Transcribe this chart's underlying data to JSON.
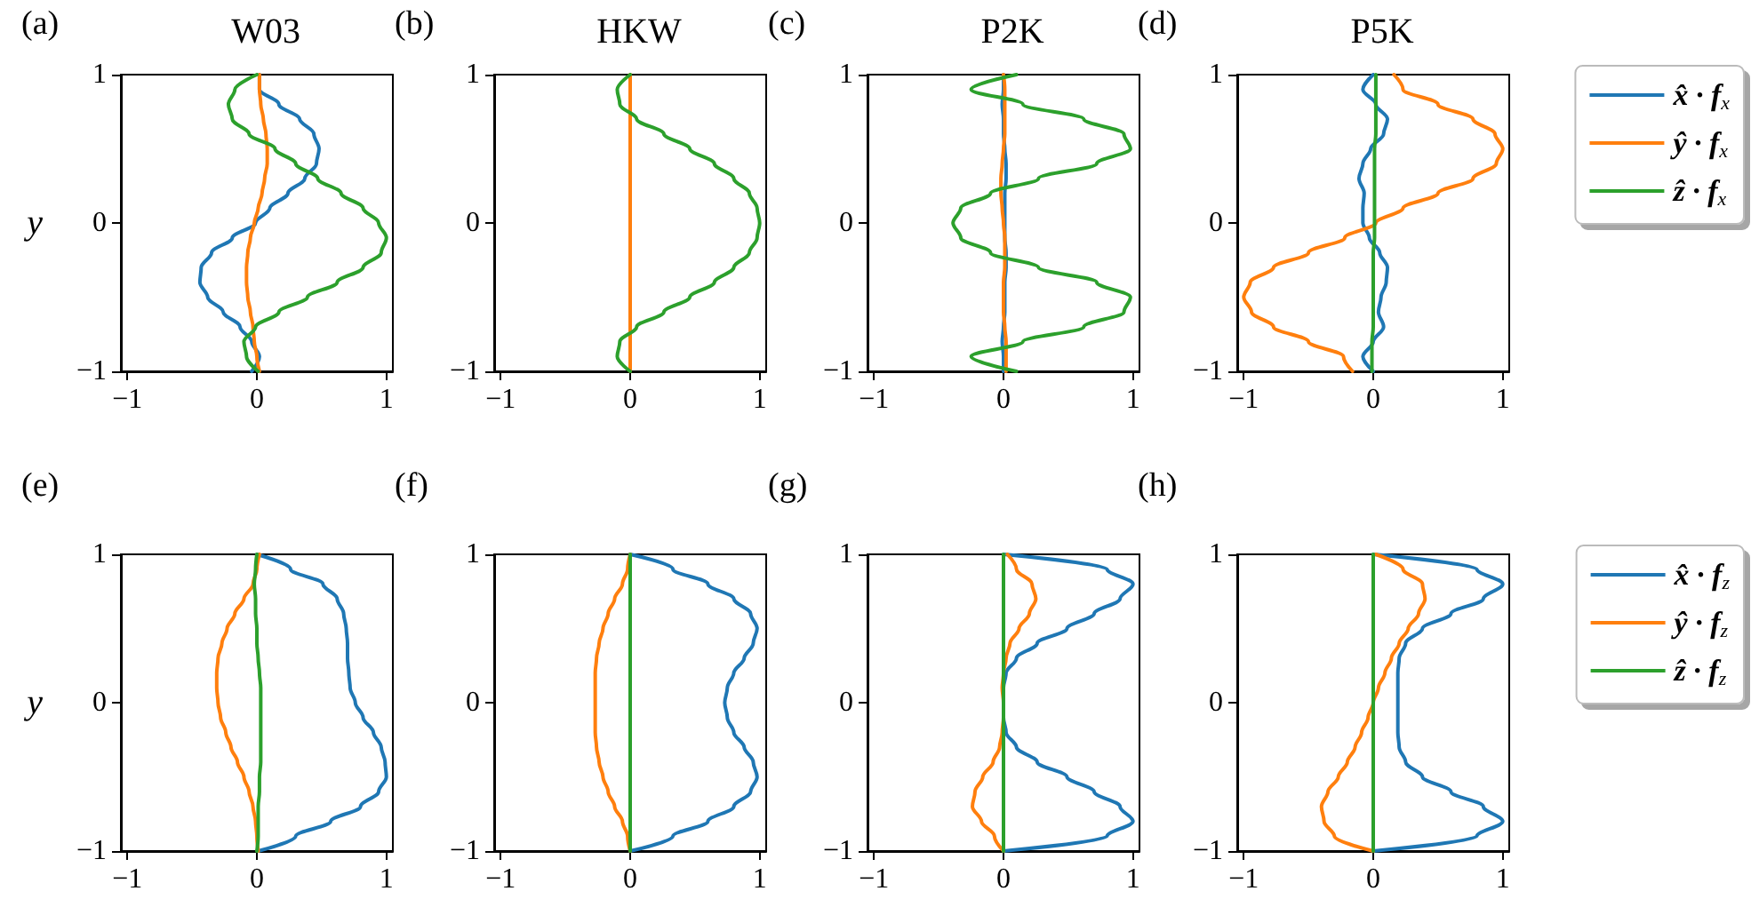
{
  "chart_data": [
    {
      "type": "line",
      "title": "W03",
      "annotations": [
        "(a)"
      ],
      "ylabel": "y",
      "xlim": [
        -1.05,
        1.05
      ],
      "xticks": [
        -1,
        0,
        1
      ],
      "ylim": [
        -1,
        1
      ],
      "yticks": [
        -1,
        0,
        1
      ],
      "marker": "none",
      "line_style": "solid",
      "series": [
        {
          "color": "#1f77b4",
          "x": [
            -0.04,
            0.02,
            -0.04,
            -0.13,
            -0.26,
            -0.38,
            -0.44,
            -0.43,
            -0.35,
            -0.19,
            -0.01,
            0.1,
            0.24,
            0.37,
            0.46,
            0.48,
            0.44,
            0.33,
            0.17,
            0.02,
            0.02
          ],
          "values": [
            -1,
            -0.9,
            -0.8,
            -0.7,
            -0.6,
            -0.5,
            -0.4,
            -0.3,
            -0.2,
            -0.1,
            0,
            0.1,
            0.2,
            0.3,
            0.4,
            0.5,
            0.6,
            0.7,
            0.8,
            0.9,
            1
          ]
        },
        {
          "color": "#ff7f0e",
          "x": [
            0.02,
            0,
            -0.02,
            -0.03,
            -0.05,
            -0.07,
            -0.08,
            -0.08,
            -0.07,
            -0.05,
            -0.02,
            0.01,
            0.04,
            0.06,
            0.08,
            0.08,
            0.07,
            0.05,
            0.03,
            0.02,
            0.02
          ],
          "values": [
            -1,
            -0.9,
            -0.8,
            -0.7,
            -0.6,
            -0.5,
            -0.4,
            -0.3,
            -0.2,
            -0.1,
            0,
            0.1,
            0.2,
            0.3,
            0.4,
            0.5,
            0.6,
            0.7,
            0.8,
            0.9,
            1
          ]
        },
        {
          "color": "#2ca02c",
          "x": [
            0.01,
            -0.08,
            -0.1,
            -0.01,
            0.17,
            0.39,
            0.62,
            0.82,
            0.96,
            1.0,
            0.94,
            0.82,
            0.65,
            0.47,
            0.3,
            0.14,
            -0.06,
            -0.19,
            -0.22,
            -0.17,
            0
          ],
          "values": [
            -1,
            -0.9,
            -0.8,
            -0.7,
            -0.6,
            -0.5,
            -0.4,
            -0.3,
            -0.2,
            -0.1,
            0,
            0.1,
            0.2,
            0.3,
            0.4,
            0.5,
            0.6,
            0.7,
            0.8,
            0.9,
            1
          ]
        }
      ]
    },
    {
      "type": "line",
      "title": "HKW",
      "annotations": [
        "(b)"
      ],
      "xlim": [
        -1.05,
        1.05
      ],
      "xticks": [
        -1,
        0,
        1
      ],
      "ylim": [
        -1,
        1
      ],
      "yticks": [
        -1,
        0,
        1
      ],
      "marker": "none",
      "line_style": "solid",
      "series": [
        {
          "color": "#ff7f0e",
          "x": [
            0,
            0,
            0,
            0,
            0,
            0,
            0,
            0,
            0,
            0,
            0,
            0,
            0,
            0,
            0,
            0,
            0,
            0,
            0,
            0,
            0
          ],
          "values": [
            -1,
            -0.9,
            -0.8,
            -0.7,
            -0.6,
            -0.5,
            -0.4,
            -0.3,
            -0.2,
            -0.1,
            0,
            0.1,
            0.2,
            0.3,
            0.4,
            0.5,
            0.6,
            0.7,
            0.8,
            0.9,
            1
          ]
        },
        {
          "color": "#2ca02c",
          "x": [
            0,
            -0.1,
            -0.08,
            0.05,
            0.26,
            0.46,
            0.65,
            0.8,
            0.92,
            0.98,
            1.0,
            0.98,
            0.92,
            0.8,
            0.65,
            0.46,
            0.26,
            0.05,
            -0.08,
            -0.1,
            0
          ],
          "values": [
            -1,
            -0.9,
            -0.8,
            -0.7,
            -0.6,
            -0.5,
            -0.4,
            -0.3,
            -0.2,
            -0.1,
            0,
            0.1,
            0.2,
            0.3,
            0.4,
            0.5,
            0.6,
            0.7,
            0.8,
            0.9,
            1
          ]
        }
      ]
    },
    {
      "type": "line",
      "title": "P2K",
      "annotations": [
        "(c)"
      ],
      "xlim": [
        -1.05,
        1.05
      ],
      "xticks": [
        -1,
        0,
        1
      ],
      "ylim": [
        -1,
        1
      ],
      "yticks": [
        -1,
        0,
        1
      ],
      "marker": "none",
      "line_style": "solid",
      "series": [
        {
          "color": "#1f77b4",
          "x": [
            0,
            0,
            -0.01,
            0,
            0.01,
            0.01,
            0.01,
            0.02,
            0.02,
            0.01,
            0.01,
            0.01,
            0.01,
            0.02,
            0.02,
            0.01,
            0,
            0,
            -0.01,
            0,
            0
          ],
          "values": [
            -1,
            -0.9,
            -0.8,
            -0.7,
            -0.6,
            -0.5,
            -0.4,
            -0.3,
            -0.2,
            -0.1,
            0,
            0.1,
            0.2,
            0.3,
            0.4,
            0.5,
            0.6,
            0.7,
            0.8,
            0.9,
            1
          ]
        },
        {
          "color": "#ff7f0e",
          "x": [
            0.02,
            0.02,
            0.02,
            0.01,
            0,
            0,
            0,
            0.01,
            0.01,
            0.01,
            0,
            -0.01,
            -0.02,
            -0.02,
            -0.01,
            0,
            0.01,
            0.01,
            0.01,
            0.01,
            0
          ],
          "values": [
            -1,
            -0.9,
            -0.8,
            -0.7,
            -0.6,
            -0.5,
            -0.4,
            -0.3,
            -0.2,
            -0.1,
            0,
            0.1,
            0.2,
            0.3,
            0.4,
            0.5,
            0.6,
            0.7,
            0.8,
            0.9,
            1
          ]
        },
        {
          "color": "#2ca02c",
          "x": [
            0.1,
            -0.25,
            0.15,
            0.62,
            0.93,
            0.98,
            0.72,
            0.27,
            -0.1,
            -0.33,
            -0.39,
            -0.33,
            -0.1,
            0.27,
            0.72,
            0.98,
            0.93,
            0.62,
            0.15,
            -0.25,
            0.1
          ],
          "values": [
            -1,
            -0.9,
            -0.8,
            -0.7,
            -0.6,
            -0.5,
            -0.4,
            -0.3,
            -0.2,
            -0.1,
            0,
            0.1,
            0.2,
            0.3,
            0.4,
            0.5,
            0.6,
            0.7,
            0.8,
            0.9,
            1
          ]
        }
      ]
    },
    {
      "type": "line",
      "title": "P5K",
      "annotations": [
        "(d)"
      ],
      "xlim": [
        -1.05,
        1.05
      ],
      "xticks": [
        -1,
        0,
        1
      ],
      "ylim": [
        -1,
        1
      ],
      "yticks": [
        -1,
        0,
        1
      ],
      "marker": "none",
      "line_style": "solid",
      "legend": "right",
      "series": [
        {
          "name": "x̂ · f$_{x}$",
          "color": "#1f77b4",
          "x": [
            0,
            -0.08,
            0,
            0.08,
            0.04,
            0.06,
            0.1,
            0.11,
            0.05,
            -0.03,
            -0.08,
            -0.08,
            -0.07,
            -0.11,
            -0.08,
            -0.02,
            0.08,
            0.11,
            0.02,
            -0.08,
            0
          ],
          "values": [
            -1,
            -0.9,
            -0.8,
            -0.7,
            -0.6,
            -0.5,
            -0.4,
            -0.3,
            -0.2,
            -0.1,
            0,
            0.1,
            0.2,
            0.3,
            0.4,
            0.5,
            0.6,
            0.7,
            0.8,
            0.9,
            1
          ]
        },
        {
          "name": "ŷ · f$_{x}$",
          "color": "#ff7f0e",
          "x": [
            -0.16,
            -0.23,
            -0.5,
            -0.77,
            -0.94,
            -1.0,
            -0.95,
            -0.77,
            -0.5,
            -0.22,
            0.02,
            0.23,
            0.5,
            0.77,
            0.95,
            1.0,
            0.94,
            0.77,
            0.5,
            0.23,
            0.16
          ],
          "values": [
            -1,
            -0.9,
            -0.8,
            -0.7,
            -0.6,
            -0.5,
            -0.4,
            -0.3,
            -0.2,
            -0.1,
            0,
            0.1,
            0.2,
            0.3,
            0.4,
            0.5,
            0.6,
            0.7,
            0.8,
            0.9,
            1
          ]
        },
        {
          "name": "ẑ · f$_{x}$",
          "color": "#2ca02c",
          "x": [
            -0.01,
            -0.01,
            -0.01,
            0,
            0,
            0,
            0,
            0,
            0,
            0.01,
            0.01,
            0.01,
            0.01,
            0.01,
            0.01,
            0.01,
            0.02,
            0.02,
            0.02,
            0.02,
            0.02
          ],
          "values": [
            -1,
            -0.9,
            -0.8,
            -0.7,
            -0.6,
            -0.5,
            -0.4,
            -0.3,
            -0.2,
            -0.1,
            0,
            0.1,
            0.2,
            0.3,
            0.4,
            0.5,
            0.6,
            0.7,
            0.8,
            0.9,
            1
          ]
        }
      ]
    },
    {
      "type": "line",
      "annotations": [
        "(e)"
      ],
      "ylabel": "y",
      "xlim": [
        -1.05,
        1.05
      ],
      "xticks": [
        -1,
        0,
        1
      ],
      "ylim": [
        -1,
        1
      ],
      "yticks": [
        -1,
        0,
        1
      ],
      "marker": "none",
      "line_style": "solid",
      "series": [
        {
          "color": "#1f77b4",
          "x": [
            0.01,
            0.3,
            0.57,
            0.8,
            0.94,
            1.0,
            0.99,
            0.96,
            0.9,
            0.82,
            0.76,
            0.72,
            0.71,
            0.7,
            0.7,
            0.69,
            0.67,
            0.62,
            0.51,
            0.26,
            0
          ],
          "values": [
            -1,
            -0.9,
            -0.8,
            -0.7,
            -0.6,
            -0.5,
            -0.4,
            -0.3,
            -0.2,
            -0.1,
            0,
            0.1,
            0.2,
            0.3,
            0.4,
            0.5,
            0.6,
            0.7,
            0.8,
            0.9,
            1
          ]
        },
        {
          "color": "#ff7f0e",
          "x": [
            0.01,
            0,
            -0.01,
            -0.03,
            -0.06,
            -0.1,
            -0.15,
            -0.2,
            -0.24,
            -0.28,
            -0.3,
            -0.31,
            -0.31,
            -0.3,
            -0.27,
            -0.23,
            -0.17,
            -0.1,
            -0.03,
            0,
            0.02
          ],
          "values": [
            -1,
            -0.9,
            -0.8,
            -0.7,
            -0.6,
            -0.5,
            -0.4,
            -0.3,
            -0.2,
            -0.1,
            0,
            0.1,
            0.2,
            0.3,
            0.4,
            0.5,
            0.6,
            0.7,
            0.8,
            0.9,
            1
          ]
        },
        {
          "color": "#2ca02c",
          "x": [
            0,
            0.01,
            0.01,
            0.01,
            0.02,
            0.02,
            0.03,
            0.03,
            0.03,
            0.03,
            0.03,
            0.03,
            0.02,
            0.01,
            0,
            0,
            -0.01,
            -0.01,
            -0.02,
            -0.01,
            0
          ],
          "values": [
            -1,
            -0.9,
            -0.8,
            -0.7,
            -0.6,
            -0.5,
            -0.4,
            -0.3,
            -0.2,
            -0.1,
            0,
            0.1,
            0.2,
            0.3,
            0.4,
            0.5,
            0.6,
            0.7,
            0.8,
            0.9,
            1
          ]
        }
      ]
    },
    {
      "type": "line",
      "annotations": [
        "(f)"
      ],
      "xlim": [
        -1.05,
        1.05
      ],
      "xticks": [
        -1,
        0,
        1
      ],
      "ylim": [
        -1,
        1
      ],
      "yticks": [
        -1,
        0,
        1
      ],
      "marker": "none",
      "line_style": "solid",
      "series": [
        {
          "color": "#1f77b4",
          "x": [
            0,
            0.33,
            0.6,
            0.8,
            0.93,
            0.98,
            0.95,
            0.88,
            0.8,
            0.75,
            0.73,
            0.75,
            0.8,
            0.88,
            0.95,
            0.98,
            0.93,
            0.8,
            0.6,
            0.33,
            0
          ],
          "values": [
            -1,
            -0.9,
            -0.8,
            -0.7,
            -0.6,
            -0.5,
            -0.4,
            -0.3,
            -0.2,
            -0.1,
            0,
            0.1,
            0.2,
            0.3,
            0.4,
            0.5,
            0.6,
            0.7,
            0.8,
            0.9,
            1
          ]
        },
        {
          "color": "#ff7f0e",
          "x": [
            0,
            -0.02,
            -0.06,
            -0.12,
            -0.17,
            -0.21,
            -0.24,
            -0.26,
            -0.27,
            -0.27,
            -0.27,
            -0.27,
            -0.27,
            -0.26,
            -0.24,
            -0.21,
            -0.17,
            -0.12,
            -0.06,
            -0.02,
            0
          ],
          "values": [
            -1,
            -0.9,
            -0.8,
            -0.7,
            -0.6,
            -0.5,
            -0.4,
            -0.3,
            -0.2,
            -0.1,
            0,
            0.1,
            0.2,
            0.3,
            0.4,
            0.5,
            0.6,
            0.7,
            0.8,
            0.9,
            1
          ]
        },
        {
          "color": "#2ca02c",
          "x": [
            0,
            0,
            0,
            0,
            0,
            0,
            0,
            0,
            0,
            0,
            0,
            0,
            0,
            0,
            0,
            0,
            0,
            0,
            0,
            0,
            0
          ],
          "values": [
            -1,
            -0.9,
            -0.8,
            -0.7,
            -0.6,
            -0.5,
            -0.4,
            -0.3,
            -0.2,
            -0.1,
            0,
            0.1,
            0.2,
            0.3,
            0.4,
            0.5,
            0.6,
            0.7,
            0.8,
            0.9,
            1
          ]
        }
      ]
    },
    {
      "type": "line",
      "annotations": [
        "(g)"
      ],
      "xlim": [
        -1.05,
        1.05
      ],
      "xticks": [
        -1,
        0,
        1
      ],
      "ylim": [
        -1,
        1
      ],
      "yticks": [
        -1,
        0,
        1
      ],
      "marker": "none",
      "line_style": "solid",
      "series": [
        {
          "color": "#1f77b4",
          "x": [
            0,
            0.8,
            1.0,
            0.9,
            0.7,
            0.49,
            0.26,
            0.1,
            0.02,
            0,
            0,
            0,
            0.02,
            0.1,
            0.26,
            0.49,
            0.7,
            0.9,
            1.0,
            0.8,
            0
          ],
          "values": [
            -1,
            -0.9,
            -0.8,
            -0.7,
            -0.6,
            -0.5,
            -0.4,
            -0.3,
            -0.2,
            -0.1,
            0,
            0.1,
            0.2,
            0.3,
            0.4,
            0.5,
            0.6,
            0.7,
            0.8,
            0.9,
            1
          ]
        },
        {
          "color": "#ff7f0e",
          "x": [
            0,
            -0.07,
            -0.17,
            -0.24,
            -0.22,
            -0.16,
            -0.08,
            -0.03,
            -0.01,
            0,
            0,
            -0.01,
            0,
            0.02,
            0.05,
            0.12,
            0.2,
            0.25,
            0.22,
            0.1,
            0.03
          ],
          "values": [
            -1,
            -0.9,
            -0.8,
            -0.7,
            -0.6,
            -0.5,
            -0.4,
            -0.3,
            -0.2,
            -0.1,
            0,
            0.1,
            0.2,
            0.3,
            0.4,
            0.5,
            0.6,
            0.7,
            0.8,
            0.9,
            1
          ]
        },
        {
          "color": "#2ca02c",
          "x": [
            0,
            0,
            0,
            0,
            0,
            0,
            0,
            0,
            0,
            0,
            0,
            0,
            0,
            0,
            0,
            0,
            0,
            0,
            0,
            0,
            0
          ],
          "values": [
            -1,
            -0.9,
            -0.8,
            -0.7,
            -0.6,
            -0.5,
            -0.4,
            -0.3,
            -0.2,
            -0.1,
            0,
            0.1,
            0.2,
            0.3,
            0.4,
            0.5,
            0.6,
            0.7,
            0.8,
            0.9,
            1
          ]
        }
      ]
    },
    {
      "type": "line",
      "annotations": [
        "(h)"
      ],
      "xlim": [
        -1.05,
        1.05
      ],
      "xticks": [
        -1,
        0,
        1
      ],
      "ylim": [
        -1,
        1
      ],
      "yticks": [
        -1,
        0,
        1
      ],
      "marker": "none",
      "line_style": "solid",
      "legend": "right",
      "series": [
        {
          "name": "x̂ · f$_{z}$",
          "color": "#1f77b4",
          "x": [
            0,
            0.8,
            1.0,
            0.85,
            0.6,
            0.38,
            0.25,
            0.2,
            0.19,
            0.19,
            0.19,
            0.19,
            0.19,
            0.2,
            0.25,
            0.38,
            0.6,
            0.85,
            1.0,
            0.8,
            0
          ],
          "values": [
            -1,
            -0.9,
            -0.8,
            -0.7,
            -0.6,
            -0.5,
            -0.4,
            -0.3,
            -0.2,
            -0.1,
            0,
            0.1,
            0.2,
            0.3,
            0.4,
            0.5,
            0.6,
            0.7,
            0.8,
            0.9,
            1
          ]
        },
        {
          "name": "ŷ · f$_{z}$",
          "color": "#ff7f0e",
          "x": [
            0,
            -0.3,
            -0.38,
            -0.4,
            -0.35,
            -0.27,
            -0.2,
            -0.14,
            -0.09,
            -0.04,
            0,
            0.04,
            0.09,
            0.14,
            0.2,
            0.27,
            0.35,
            0.4,
            0.38,
            0.23,
            0.02
          ],
          "values": [
            -1,
            -0.9,
            -0.8,
            -0.7,
            -0.6,
            -0.5,
            -0.4,
            -0.3,
            -0.2,
            -0.1,
            0,
            0.1,
            0.2,
            0.3,
            0.4,
            0.5,
            0.6,
            0.7,
            0.8,
            0.9,
            1
          ]
        },
        {
          "name": "ẑ · f$_{z}$",
          "color": "#2ca02c",
          "x": [
            0,
            0,
            0,
            0,
            0,
            0,
            0,
            0,
            0,
            0,
            0,
            0,
            0,
            0,
            0,
            0,
            0,
            0,
            0,
            0,
            0
          ],
          "values": [
            -1,
            -0.9,
            -0.8,
            -0.7,
            -0.6,
            -0.5,
            -0.4,
            -0.3,
            -0.2,
            -0.1,
            0,
            0.1,
            0.2,
            0.3,
            0.4,
            0.5,
            0.6,
            0.7,
            0.8,
            0.9,
            1
          ]
        }
      ]
    }
  ]
}
